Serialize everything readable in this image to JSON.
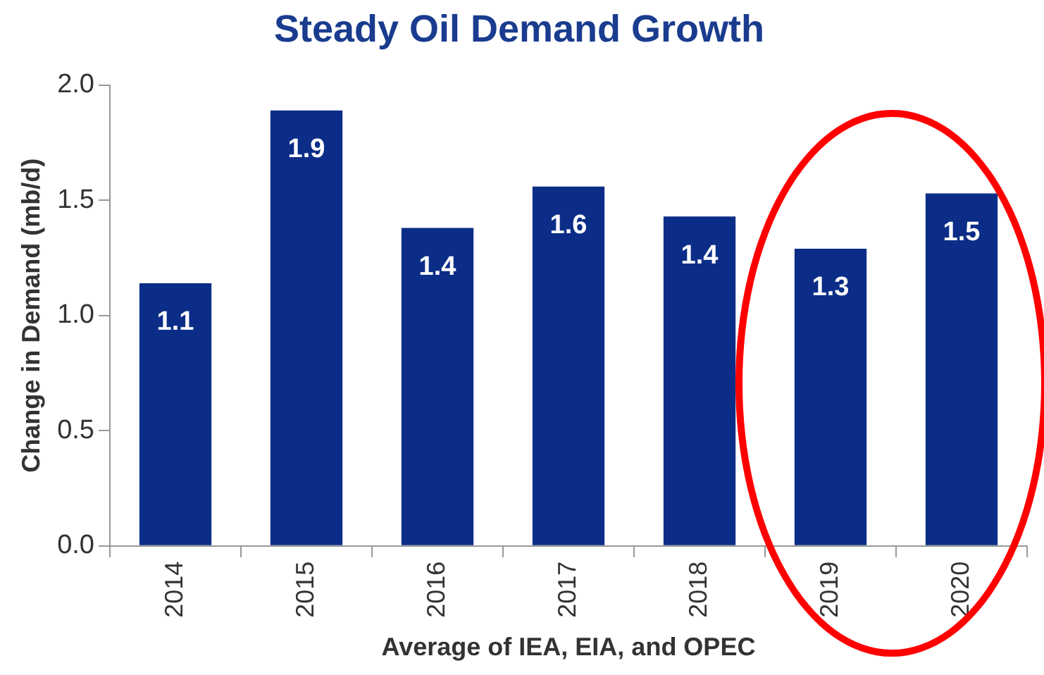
{
  "chart_data": {
    "type": "bar",
    "title": "Steady Oil Demand Growth",
    "xlabel": "Average of IEA, EIA, and OPEC",
    "ylabel": "Change in Demand (mb/d)",
    "categories": [
      "2014",
      "2015",
      "2016",
      "2017",
      "2018",
      "2019",
      "2020"
    ],
    "values": [
      1.14,
      1.89,
      1.38,
      1.56,
      1.43,
      1.29,
      1.53
    ],
    "value_labels": [
      "1.1",
      "1.9",
      "1.4",
      "1.6",
      "1.4",
      "1.3",
      "1.5"
    ],
    "color": "#0b2d87",
    "ylim": [
      0,
      2
    ],
    "yticks": [
      {
        "value": 0,
        "label": "0.0"
      },
      {
        "value": 0.5,
        "label": "0.5"
      },
      {
        "value": 1,
        "label": "1.0"
      },
      {
        "value": 1.5,
        "label": "1.5"
      },
      {
        "value": 2,
        "label": "2.0"
      }
    ],
    "grid": false,
    "legend": false
  }
}
